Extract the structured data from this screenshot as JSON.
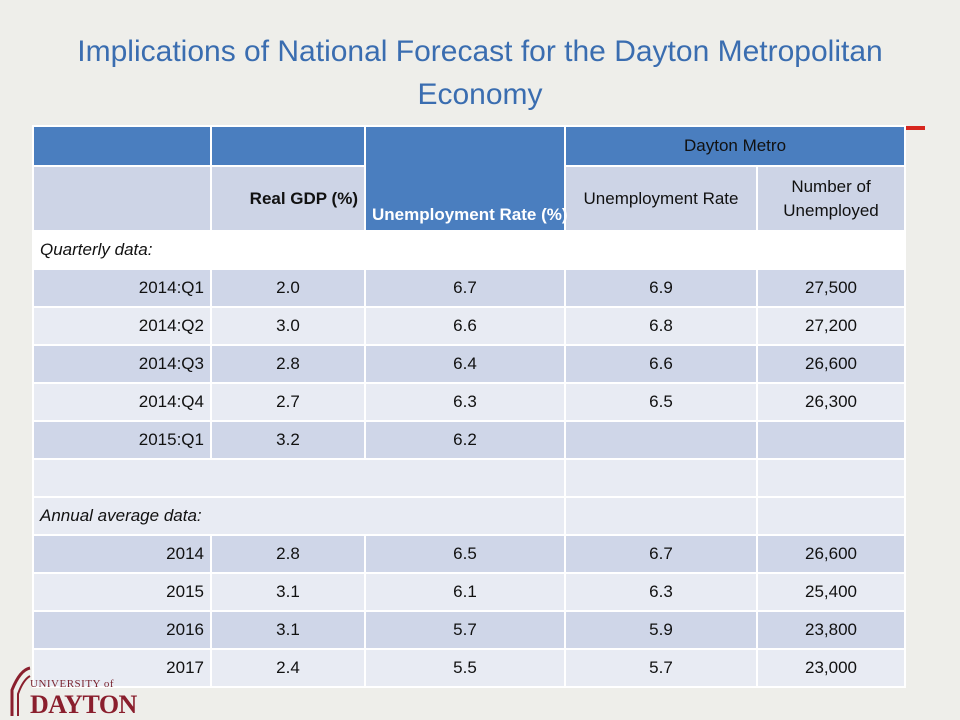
{
  "title": "Implications of National Forecast for the Dayton Metropolitan Economy",
  "header": {
    "metro_group": "Dayton Metro",
    "col_gdp": "Real GDP (%)",
    "col_unemp": "Unemployment Rate (%)",
    "col_metro_rate": "Unemployment Rate",
    "col_metro_count": "Number of Unemployed"
  },
  "sections": {
    "quarterly": "Quarterly data:",
    "annual": "Annual average data:"
  },
  "quarterly_rows": [
    {
      "period": "2014:Q1",
      "gdp": "2.0",
      "unemp": "6.7",
      "metro_rate": "6.9",
      "metro_count": "27,500"
    },
    {
      "period": "2014:Q2",
      "gdp": "3.0",
      "unemp": "6.6",
      "metro_rate": "6.8",
      "metro_count": "27,200"
    },
    {
      "period": "2014:Q3",
      "gdp": "2.8",
      "unemp": "6.4",
      "metro_rate": "6.6",
      "metro_count": "26,600"
    },
    {
      "period": "2014:Q4",
      "gdp": "2.7",
      "unemp": "6.3",
      "metro_rate": "6.5",
      "metro_count": "26,300"
    },
    {
      "period": "2015:Q1",
      "gdp": "3.2",
      "unemp": "6.2",
      "metro_rate": "",
      "metro_count": ""
    }
  ],
  "annual_rows": [
    {
      "period": "2014",
      "gdp": "2.8",
      "unemp": "6.5",
      "metro_rate": "6.7",
      "metro_count": "26,600"
    },
    {
      "period": "2015",
      "gdp": "3.1",
      "unemp": "6.1",
      "metro_rate": "6.3",
      "metro_count": "25,400"
    },
    {
      "period": "2016",
      "gdp": "3.1",
      "unemp": "5.7",
      "metro_rate": "5.9",
      "metro_count": "23,800"
    },
    {
      "period": "2017",
      "gdp": "2.4",
      "unemp": "5.5",
      "metro_rate": "5.7",
      "metro_count": "23,000"
    }
  ],
  "logo": {
    "line1": "UNIVERSITY of",
    "line2": "DAYTON"
  },
  "colors": {
    "title": "#3a6db0",
    "header_blue": "#4a7ebf",
    "row_dark": "#cfd6e8",
    "row_light": "#e8ebf3",
    "accent_red": "#d7261e",
    "logo": "#8a1f2d"
  }
}
